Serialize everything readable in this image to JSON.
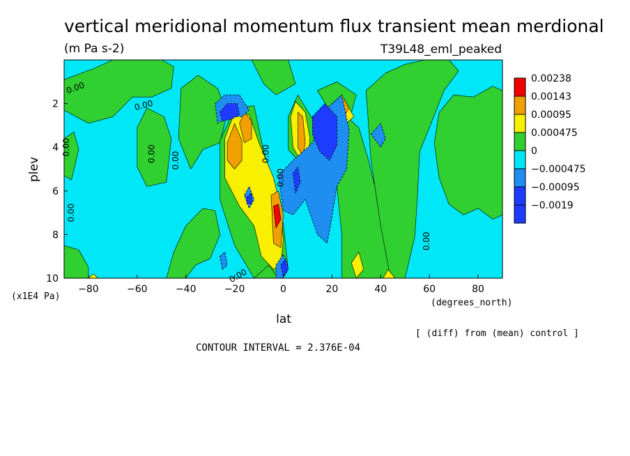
{
  "chart_data": {
    "type": "heatmap",
    "title": "vertical meridional momentum flux transient mean merdional",
    "units": "(m Pa s-2)",
    "experiment": "T39L48_eml_peaked",
    "xlabel": "lat",
    "xunits": "(degrees_north)",
    "ylabel": "plev",
    "yunits": "(x1E4 Pa)",
    "xlim": [
      -90,
      90
    ],
    "ylim": [
      10,
      0
    ],
    "x_ticks": [
      -80,
      -60,
      -40,
      -20,
      0,
      20,
      40,
      60,
      80
    ],
    "y_ticks": [
      2,
      4,
      6,
      8,
      10
    ],
    "note": "[ (diff) from (mean) control ]",
    "contour_interval": "CONTOUR INTERVAL = 2.376E-04",
    "contour_labels": [
      "0.00",
      "0.00",
      "0.00",
      "0.00",
      "0.00",
      "0.00",
      "0.00",
      "0.00",
      "0.00",
      "0.00"
    ],
    "legend": {
      "labels": [
        "0.00238",
        "0.00143",
        "0.00095",
        "0.000475",
        "0",
        "−0.000475",
        "−0.00095",
        "−0.0019"
      ],
      "colors": [
        "#f00000",
        "#f0a000",
        "#f8f000",
        "#30d030",
        "#00e8f8",
        "#1e8ef0",
        "#1e3cff",
        "#1e3cff"
      ]
    },
    "background_color": "#00e8f8",
    "regions": [
      {
        "level": 0.000475,
        "color": "#30d030",
        "polygon": [
          [
            -90,
            0.9
          ],
          [
            -78,
            0.4
          ],
          [
            -70,
            0
          ],
          [
            -50,
            0
          ],
          [
            -45,
            0.3
          ],
          [
            -46,
            1.3
          ],
          [
            -54,
            1.7
          ],
          [
            -62,
            1.7
          ],
          [
            -70,
            2.6
          ],
          [
            -80,
            2.9
          ],
          [
            -90,
            2.3
          ]
        ]
      },
      {
        "level": 0.000475,
        "color": "#30d030",
        "polygon": [
          [
            -90,
            3.6
          ],
          [
            -86,
            3.3
          ],
          [
            -84,
            4.1
          ],
          [
            -87,
            5.5
          ],
          [
            -90,
            5.3
          ]
        ]
      },
      {
        "level": 0.000475,
        "color": "#30d030",
        "polygon": [
          [
            -90,
            10
          ],
          [
            -90,
            8.5
          ],
          [
            -84,
            8.7
          ],
          [
            -80,
            9.5
          ],
          [
            -80,
            10
          ]
        ]
      },
      {
        "level": 0.000475,
        "color": "#30d030",
        "polygon": [
          [
            -60,
            3.1
          ],
          [
            -56,
            2.2
          ],
          [
            -49,
            2.6
          ],
          [
            -46,
            3.6
          ],
          [
            -48,
            5.6
          ],
          [
            -56,
            5.8
          ],
          [
            -60,
            4.9
          ]
        ]
      },
      {
        "level": 0.000475,
        "color": "#30d030",
        "polygon": [
          [
            -42,
            1.3
          ],
          [
            -35,
            0.7
          ],
          [
            -27,
            1.3
          ],
          [
            -23,
            2.4
          ],
          [
            -26,
            3.8
          ],
          [
            -33,
            4.1
          ],
          [
            -38,
            5.0
          ],
          [
            -43,
            3.6
          ]
        ]
      },
      {
        "level": 0.000475,
        "color": "#30d030",
        "polygon": [
          [
            -48,
            10
          ],
          [
            -45,
            8.8
          ],
          [
            -40,
            7.6
          ],
          [
            -33,
            6.8
          ],
          [
            -28,
            6.9
          ],
          [
            -26,
            8.0
          ],
          [
            -30,
            9.1
          ],
          [
            -36,
            9.4
          ],
          [
            -40,
            10
          ]
        ]
      },
      {
        "level": 0.000475,
        "color": "#30d030",
        "polygon": [
          [
            -26,
            3.7
          ],
          [
            -20,
            2.2
          ],
          [
            -12,
            2.1
          ],
          [
            -8,
            4.2
          ],
          [
            -4,
            5.8
          ],
          [
            0,
            7.5
          ],
          [
            2,
            9.6
          ],
          [
            -2,
            10
          ],
          [
            -12,
            10
          ],
          [
            -20,
            8.5
          ],
          [
            -26,
            6.4
          ]
        ]
      },
      {
        "level": 0.000475,
        "color": "#30d030",
        "polygon": [
          [
            -13,
            0
          ],
          [
            2,
            0
          ],
          [
            5,
            1.1
          ],
          [
            -3,
            1.6
          ],
          [
            -8,
            1.1
          ]
        ]
      },
      {
        "level": 0.000475,
        "color": "#30d030",
        "polygon": [
          [
            2,
            2.6
          ],
          [
            6,
            1.6
          ],
          [
            12,
            2.7
          ],
          [
            13,
            4.3
          ],
          [
            10,
            4.8
          ],
          [
            6,
            4.6
          ],
          [
            2,
            4.1
          ]
        ]
      },
      {
        "level": 0.000475,
        "color": "#30d030",
        "polygon": [
          [
            24,
            10
          ],
          [
            24,
            8.0
          ],
          [
            22,
            5.8
          ],
          [
            23,
            4.2
          ],
          [
            23,
            3.1
          ],
          [
            26,
            2.6
          ],
          [
            31,
            3.1
          ],
          [
            35,
            4.6
          ],
          [
            40,
            6.9
          ],
          [
            44,
            8.8
          ],
          [
            46,
            10
          ]
        ]
      },
      {
        "level": 0.000475,
        "color": "#30d030",
        "polygon": [
          [
            14,
            1.4
          ],
          [
            22,
            1.0
          ],
          [
            30,
            1.6
          ],
          [
            28,
            2.4
          ],
          [
            20,
            2.5
          ]
        ]
      },
      {
        "level": 0.000475,
        "color": "#30d030",
        "polygon": [
          [
            34,
            1.4
          ],
          [
            42,
            0.6
          ],
          [
            50,
            0.2
          ],
          [
            58,
            0
          ],
          [
            68,
            0
          ],
          [
            72,
            0.5
          ],
          [
            66,
            1.4
          ],
          [
            60,
            3.1
          ],
          [
            56,
            4.2
          ],
          [
            55,
            6.4
          ],
          [
            54,
            8.1
          ],
          [
            50,
            10
          ],
          [
            44,
            10
          ],
          [
            40,
            7.6
          ],
          [
            36,
            4.6
          ]
        ]
      },
      {
        "level": 0.000475,
        "color": "#30d030",
        "polygon": [
          [
            64,
            2.4
          ],
          [
            70,
            1.6
          ],
          [
            78,
            1.7
          ],
          [
            86,
            1.2
          ],
          [
            90,
            1.4
          ],
          [
            90,
            7.1
          ],
          [
            86,
            7.3
          ],
          [
            80,
            6.8
          ],
          [
            74,
            7.1
          ],
          [
            68,
            6.6
          ],
          [
            64,
            5.4
          ],
          [
            62,
            3.8
          ]
        ]
      },
      {
        "level": 0.000475,
        "color": "#30d030",
        "polygon": [
          [
            -12,
            10
          ],
          [
            -6,
            9.4
          ],
          [
            -2,
            10
          ]
        ]
      },
      {
        "level": 0.00095,
        "color": "#f8f000",
        "polygon": [
          [
            -24,
            3.6
          ],
          [
            -20,
            2.4
          ],
          [
            -14,
            2.5
          ],
          [
            -10,
            3.8
          ],
          [
            -4,
            5.4
          ],
          [
            -1,
            6.8
          ],
          [
            0,
            8.2
          ],
          [
            -1,
            9.4
          ],
          [
            -4,
            9.6
          ],
          [
            -9,
            9.0
          ],
          [
            -12,
            7.6
          ],
          [
            -18,
            6.7
          ],
          [
            -24,
            5.4
          ]
        ]
      },
      {
        "level": 0.00095,
        "color": "#f8f000",
        "polygon": [
          [
            3,
            2.6
          ],
          [
            5,
            1.9
          ],
          [
            9,
            2.4
          ],
          [
            11,
            3.6
          ],
          [
            10,
            4.6
          ],
          [
            7,
            4.6
          ],
          [
            4,
            4.0
          ]
        ]
      },
      {
        "level": 0.00095,
        "color": "#f8f000",
        "polygon": [
          [
            20,
            2.0
          ],
          [
            24,
            1.6
          ],
          [
            29,
            2.6
          ],
          [
            25,
            3.0
          ],
          [
            21,
            2.4
          ]
        ]
      },
      {
        "level": 0.00095,
        "color": "#f8f000",
        "polygon": [
          [
            28,
            9.3
          ],
          [
            31,
            8.8
          ],
          [
            33,
            9.6
          ],
          [
            30,
            10
          ]
        ]
      },
      {
        "level": 0.00095,
        "color": "#f8f000",
        "polygon": [
          [
            41,
            10
          ],
          [
            43,
            9.6
          ],
          [
            46,
            10
          ]
        ]
      },
      {
        "level": 0.00095,
        "color": "#f8f000",
        "polygon": [
          [
            -80,
            10
          ],
          [
            -78,
            9.8
          ],
          [
            -76,
            10
          ]
        ]
      },
      {
        "level": 0.00143,
        "color": "#f0a000",
        "polygon": [
          [
            -23,
            3.8
          ],
          [
            -20,
            2.9
          ],
          [
            -17,
            3.7
          ],
          [
            -17,
            4.6
          ],
          [
            -20,
            5.0
          ],
          [
            -23,
            4.6
          ]
        ]
      },
      {
        "level": 0.00143,
        "color": "#f0a000",
        "polygon": [
          [
            -18,
            2.9
          ],
          [
            -16,
            2.4
          ],
          [
            -13,
            2.8
          ],
          [
            -13,
            3.6
          ],
          [
            -16,
            3.8
          ]
        ]
      },
      {
        "level": 0.00143,
        "color": "#f0a000",
        "polygon": [
          [
            -5,
            6.2
          ],
          [
            -2,
            6.0
          ],
          [
            0,
            7.1
          ],
          [
            -1,
            8.6
          ],
          [
            -4,
            8.4
          ]
        ]
      },
      {
        "level": 0.00143,
        "color": "#f0a000",
        "polygon": [
          [
            6,
            2.4
          ],
          [
            8,
            2.6
          ],
          [
            9,
            3.8
          ],
          [
            8,
            4.4
          ],
          [
            6,
            4.0
          ]
        ]
      },
      {
        "level": 0.00143,
        "color": "#f0a000",
        "polygon": [
          [
            22,
            2.0
          ],
          [
            25,
            1.8
          ],
          [
            27,
            2.2
          ],
          [
            25,
            2.6
          ]
        ]
      },
      {
        "level": 0.00238,
        "color": "#f00000",
        "polygon": [
          [
            -4,
            6.7
          ],
          [
            -2,
            6.6
          ],
          [
            -1,
            7.3
          ],
          [
            -3,
            7.7
          ]
        ]
      },
      {
        "level": -0.000475,
        "color": "#1e8ef0",
        "polygon": [
          [
            -28,
            2.0
          ],
          [
            -24,
            1.6
          ],
          [
            -18,
            1.6
          ],
          [
            -14,
            2.3
          ],
          [
            -17,
            2.6
          ],
          [
            -22,
            2.6
          ],
          [
            -27,
            2.9
          ]
        ]
      },
      {
        "level": -0.000475,
        "color": "#1e8ef0",
        "polygon": [
          [
            -2,
            5.3
          ],
          [
            4,
            4.6
          ],
          [
            12,
            3.8
          ],
          [
            17,
            2.3
          ],
          [
            24,
            1.6
          ],
          [
            27,
            3.2
          ],
          [
            26,
            5.0
          ],
          [
            22,
            5.8
          ],
          [
            20,
            7.2
          ],
          [
            18,
            8.4
          ],
          [
            14,
            8.0
          ],
          [
            9,
            6.4
          ],
          [
            4,
            7.1
          ],
          [
            0,
            6.9
          ]
        ]
      },
      {
        "level": -0.000475,
        "color": "#1e8ef0",
        "polygon": [
          [
            -3,
            9.4
          ],
          [
            0,
            8.9
          ],
          [
            2,
            9.6
          ],
          [
            0,
            10
          ],
          [
            -3,
            10
          ]
        ]
      },
      {
        "level": -0.000475,
        "color": "#1e8ef0",
        "polygon": [
          [
            36,
            3.4
          ],
          [
            40,
            2.9
          ],
          [
            42,
            3.6
          ],
          [
            40,
            4.0
          ]
        ]
      },
      {
        "level": -0.000475,
        "color": "#1e8ef0",
        "polygon": [
          [
            -16,
            6.2
          ],
          [
            -14,
            5.8
          ],
          [
            -12,
            6.4
          ],
          [
            -14,
            6.8
          ]
        ]
      },
      {
        "level": -0.000475,
        "color": "#1e8ef0",
        "polygon": [
          [
            -26,
            9.0
          ],
          [
            -24,
            8.8
          ],
          [
            -23,
            9.4
          ],
          [
            -25,
            9.6
          ]
        ]
      },
      {
        "level": -0.00095,
        "color": "#1e3cff",
        "polygon": [
          [
            -26,
            2.4
          ],
          [
            -23,
            2.0
          ],
          [
            -19,
            2.0
          ],
          [
            -18,
            2.5
          ],
          [
            -21,
            2.7
          ],
          [
            -25,
            2.8
          ]
        ]
      },
      {
        "level": -0.00095,
        "color": "#1e3cff",
        "polygon": [
          [
            12,
            2.6
          ],
          [
            17,
            2.0
          ],
          [
            22,
            2.6
          ],
          [
            22,
            3.9
          ],
          [
            19,
            4.6
          ],
          [
            15,
            4.2
          ],
          [
            12,
            3.4
          ]
        ]
      },
      {
        "level": -0.00095,
        "color": "#1e3cff",
        "polygon": [
          [
            4,
            5.2
          ],
          [
            6,
            4.9
          ],
          [
            7,
            5.6
          ],
          [
            5,
            6.1
          ]
        ]
      },
      {
        "level": -0.00095,
        "color": "#1e3cff",
        "polygon": [
          [
            -1,
            9.4
          ],
          [
            1,
            9.1
          ],
          [
            2,
            9.6
          ],
          [
            0,
            9.9
          ]
        ]
      },
      {
        "level": -0.00095,
        "color": "#1e3cff",
        "polygon": [
          [
            -15,
            6.3
          ],
          [
            -13,
            6.1
          ],
          [
            -13,
            6.6
          ],
          [
            -15,
            6.6
          ]
        ]
      }
    ]
  }
}
